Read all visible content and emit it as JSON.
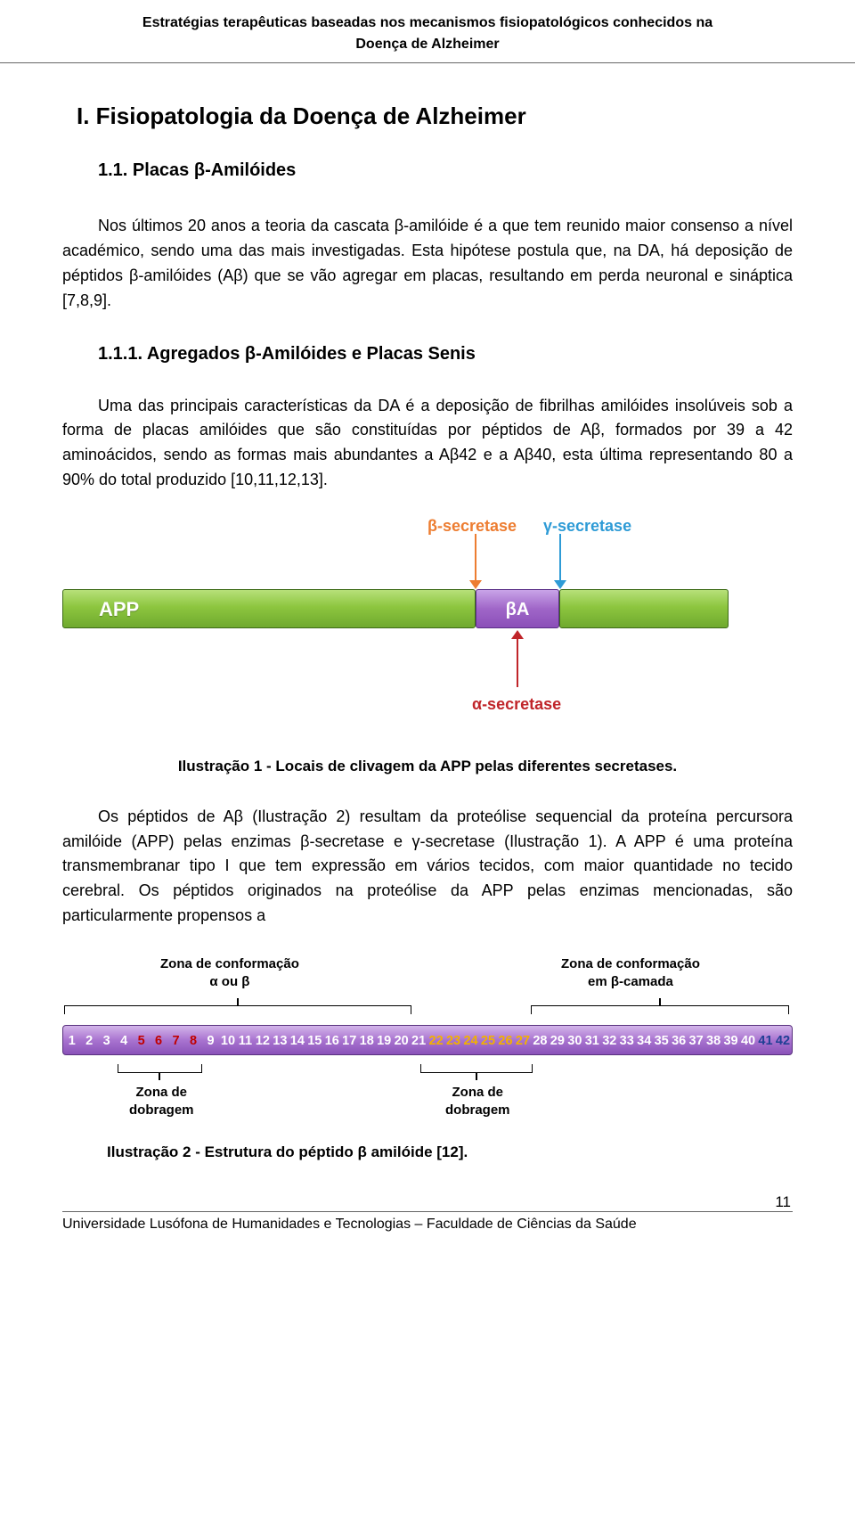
{
  "running_head_line1": "Estratégias terapêuticas baseadas nos mecanismos fisiopatológicos conhecidos na",
  "running_head_line2": "Doença de Alzheimer",
  "heading_i": "I.    Fisiopatologia da Doença de Alzheimer",
  "heading_1_1": "1.1.  Placas β-Amilóides",
  "para1": "Nos últimos 20 anos a teoria da cascata β-amilóide é a que tem reunido maior consenso a nível académico, sendo uma das mais investigadas. Esta hipótese postula que, na DA, há deposição de péptidos β-amilóides (Aβ) que se vão agregar em placas, resultando em perda neuronal e sináptica [7,8,9].",
  "heading_1_1_1": "1.1.1.  Agregados β-Amilóides e Placas Senis",
  "para2": "Uma das principais características da DA é a deposição de fibrilhas amilóides insolúveis sob a forma de placas amilóides que são constituídas por péptidos de Aβ, formados por 39 a 42 aminoácidos, sendo as formas mais abundantes a Aβ42 e a Aβ40, esta última representando 80 a 90% do total produzido [10,11,12,13].",
  "illus1": {
    "beta_secretase_label": "β-secretase",
    "gamma_secretase_label": "γ-secretase",
    "alpha_secretase_label": "α-secretase",
    "app_label": "APP",
    "beta_block_label": "βA",
    "colors": {
      "beta_secretase": "#ed7d31",
      "gamma_secretase": "#2e9bd6",
      "alpha_secretase": "#c0252a",
      "app_bar": "#8dc63f",
      "beta_block": "#8b4fb8"
    },
    "caption": "Ilustração 1 - Locais de clivagem da APP pelas diferentes secretases."
  },
  "para3": "Os péptidos de Aβ (Ilustração 2) resultam da proteólise sequencial da proteína percursora amilóide (APP) pelas enzimas β-secretase e γ-secretase (Ilustração 1). A APP é uma proteína transmembranar tipo I que tem expressão em vários tecidos, com maior quantidade no tecido cerebral. Os péptidos originados na proteólise da APP pelas enzimas mencionadas, são particularmente propensos a",
  "illus2": {
    "conf_left_line1": "Zona de conformação",
    "conf_left_line2": "α ou β",
    "conf_right_line1": "Zona de conformação",
    "conf_right_line2": "em β-camada",
    "fold_label_line1": "Zona de",
    "fold_label_line2": "dobragem",
    "residues": [
      {
        "n": "1",
        "c": "#ffffff"
      },
      {
        "n": "2",
        "c": "#ffffff"
      },
      {
        "n": "3",
        "c": "#ffffff"
      },
      {
        "n": "4",
        "c": "#ffffff"
      },
      {
        "n": "5",
        "c": "#c00000"
      },
      {
        "n": "6",
        "c": "#c00000"
      },
      {
        "n": "7",
        "c": "#c00000"
      },
      {
        "n": "8",
        "c": "#c00000"
      },
      {
        "n": "9",
        "c": "#ffffff"
      },
      {
        "n": "10",
        "c": "#ffffff"
      },
      {
        "n": "11",
        "c": "#ffffff"
      },
      {
        "n": "12",
        "c": "#ffffff"
      },
      {
        "n": "13",
        "c": "#ffffff"
      },
      {
        "n": "14",
        "c": "#ffffff"
      },
      {
        "n": "15",
        "c": "#ffffff"
      },
      {
        "n": "16",
        "c": "#ffffff"
      },
      {
        "n": "17",
        "c": "#ffffff"
      },
      {
        "n": "18",
        "c": "#ffffff"
      },
      {
        "n": "19",
        "c": "#ffffff"
      },
      {
        "n": "20",
        "c": "#ffffff"
      },
      {
        "n": "21",
        "c": "#ffffff"
      },
      {
        "n": "22",
        "c": "#f2b100"
      },
      {
        "n": "23",
        "c": "#f2b100"
      },
      {
        "n": "24",
        "c": "#f2b100"
      },
      {
        "n": "25",
        "c": "#f2b100"
      },
      {
        "n": "26",
        "c": "#f2b100"
      },
      {
        "n": "27",
        "c": "#f2b100"
      },
      {
        "n": "28",
        "c": "#ffffff"
      },
      {
        "n": "29",
        "c": "#ffffff"
      },
      {
        "n": "30",
        "c": "#ffffff"
      },
      {
        "n": "31",
        "c": "#ffffff"
      },
      {
        "n": "32",
        "c": "#ffffff"
      },
      {
        "n": "33",
        "c": "#ffffff"
      },
      {
        "n": "34",
        "c": "#ffffff"
      },
      {
        "n": "35",
        "c": "#ffffff"
      },
      {
        "n": "36",
        "c": "#ffffff"
      },
      {
        "n": "37",
        "c": "#ffffff"
      },
      {
        "n": "38",
        "c": "#ffffff"
      },
      {
        "n": "39",
        "c": "#ffffff"
      },
      {
        "n": "40",
        "c": "#ffffff"
      },
      {
        "n": "41",
        "c": "#1f3f94"
      },
      {
        "n": "42",
        "c": "#1f3f94"
      }
    ],
    "caption": "Ilustração 2 - Estrutura do péptido β amilóide [12]."
  },
  "footer_text": "Universidade Lusófona de Humanidades e Tecnologias – Faculdade de Ciências da Saúde",
  "page_number": "11"
}
